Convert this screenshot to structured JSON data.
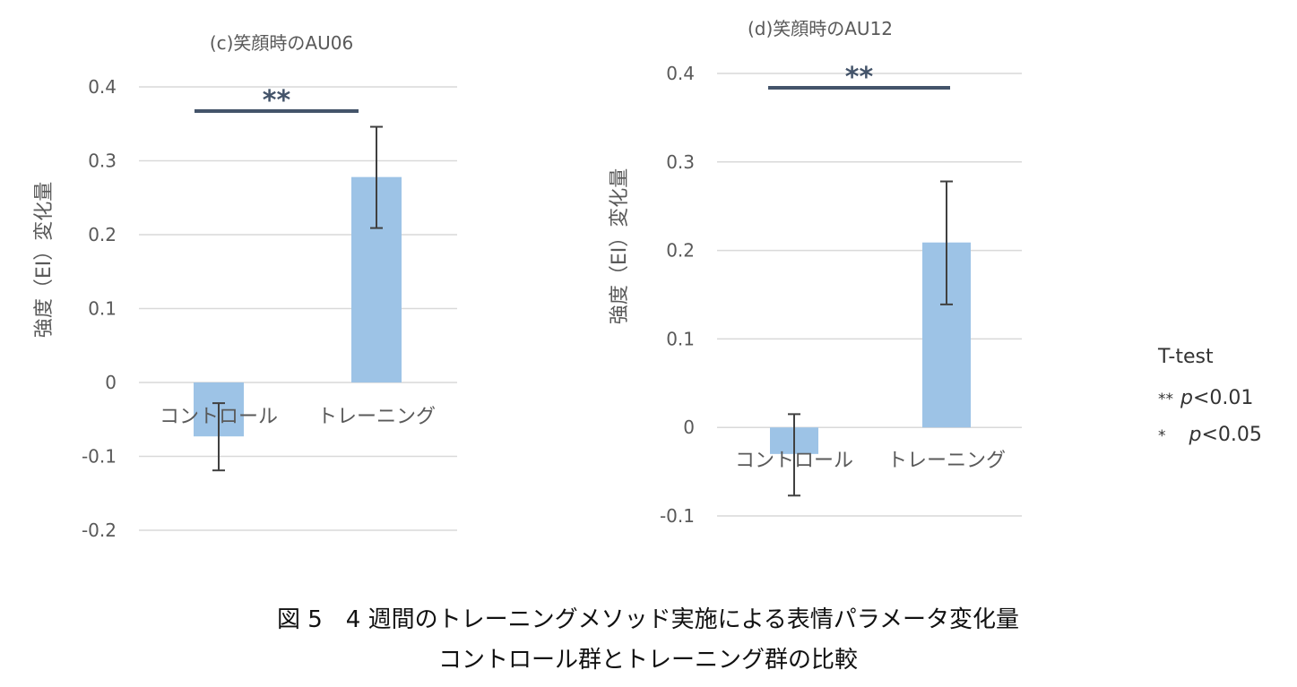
{
  "chart_data": [
    {
      "type": "bar",
      "title": "(c)笑顔時のAU06",
      "ylabel": "強度（EI）変化量",
      "categories": [
        "コントロール",
        "トレーニング"
      ],
      "values": [
        -0.073,
        0.278
      ],
      "error_low": [
        -0.119,
        0.209
      ],
      "error_high": [
        -0.028,
        0.346
      ],
      "ylim": [
        -0.2,
        0.4
      ],
      "yticks": [
        "-0.2",
        "-0.1",
        "0",
        "0.1",
        "0.2",
        "0.3",
        "0.4"
      ],
      "significance": "**",
      "bar_color": "#9dc3e6",
      "grid": true
    },
    {
      "type": "bar",
      "title": "(d)笑顔時のAU12",
      "ylabel": "強度（EI）変化量",
      "categories": [
        "コントロール",
        "トレーニング"
      ],
      "values": [
        -0.03,
        0.209
      ],
      "error_low": [
        -0.077,
        0.139
      ],
      "error_high": [
        0.015,
        0.278
      ],
      "ylim": [
        -0.1,
        0.4
      ],
      "yticks": [
        "-0.1",
        "0",
        "0.1",
        "0.2",
        "0.3",
        "0.4"
      ],
      "significance": "**",
      "bar_color": "#9dc3e6",
      "grid": true
    }
  ],
  "legend": {
    "title": "T-test",
    "line1_stars": "**",
    "line1_p": "p",
    "line1_rest": "<0.01",
    "line2_stars": "*",
    "line2_p": "p",
    "line2_rest": "<0.05"
  },
  "caption": {
    "line1": "図 5　4 週間のトレーニングメソッド実施による表情パラメータ変化量",
    "line2": "コントロール群とトレーニング群の比較"
  },
  "colors": {
    "grid": "#d9d9d9",
    "significance_bar": "#44546a",
    "error_bar": "#404040",
    "tick_text": "#595959"
  }
}
